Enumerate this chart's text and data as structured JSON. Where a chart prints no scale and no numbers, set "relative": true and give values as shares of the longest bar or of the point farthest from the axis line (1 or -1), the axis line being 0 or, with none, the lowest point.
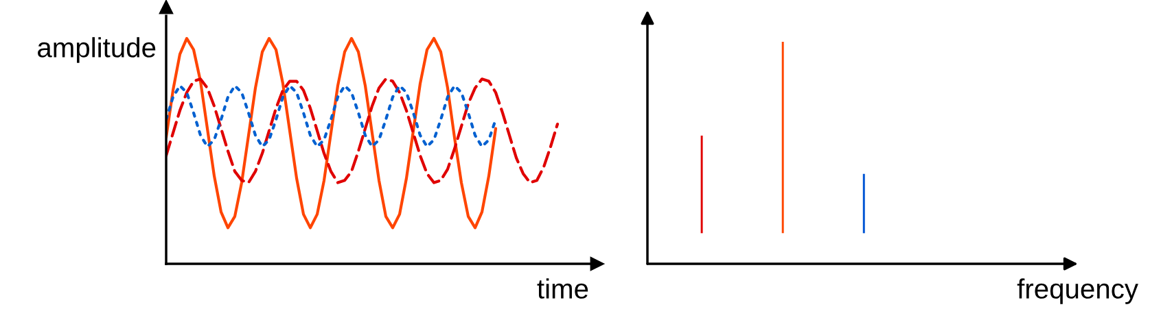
{
  "chart_data": [
    {
      "type": "line",
      "relative": true,
      "xlabel": "time",
      "ylabel": "amplitude",
      "categories": [
        null,
        null,
        null,
        null,
        null,
        null,
        null,
        null,
        null,
        null,
        null,
        null,
        null,
        null,
        null,
        null,
        null,
        null,
        null,
        null,
        null,
        null,
        null,
        null,
        null,
        null,
        null,
        null,
        null,
        null,
        null,
        null,
        null,
        null,
        null,
        null,
        null,
        null,
        null,
        null,
        null,
        null,
        null,
        null,
        null,
        null,
        null,
        null,
        null,
        null,
        null,
        null,
        null,
        null,
        null,
        null,
        null,
        null
      ],
      "series": [
        {
          "color": "#ff4500",
          "line_style": "solid",
          "values": [
            0.56,
            0.77,
            0.93,
            1.0,
            0.95,
            0.81,
            0.6,
            0.39,
            0.23,
            0.16,
            0.21,
            0.36,
            0.57,
            0.78,
            0.94,
            1.0,
            0.95,
            0.8,
            0.59,
            0.38,
            0.22,
            0.16,
            0.22,
            0.37,
            0.58,
            0.79,
            0.94,
            1.0,
            0.94,
            0.79,
            0.58,
            0.37,
            0.21,
            0.16,
            0.22,
            0.38,
            0.59,
            0.8,
            0.95,
            1.0,
            0.94,
            0.78,
            0.56,
            0.36,
            0.21,
            0.16,
            0.23,
            0.39,
            0.6,
            null,
            null,
            null,
            null,
            null,
            null,
            null,
            null,
            null
          ]
        },
        {
          "color": "#e00000",
          "line_style": "dashed",
          "values": [
            0.48,
            0.58,
            0.68,
            0.76,
            0.81,
            0.82,
            0.78,
            0.7,
            0.6,
            0.5,
            0.41,
            0.37,
            0.36,
            0.41,
            0.49,
            0.59,
            0.69,
            0.77,
            0.81,
            0.81,
            0.77,
            0.69,
            0.59,
            0.49,
            0.41,
            0.36,
            0.37,
            0.41,
            0.5,
            0.6,
            0.7,
            0.78,
            0.82,
            0.81,
            0.76,
            0.68,
            0.58,
            0.48,
            0.4,
            0.36,
            0.37,
            0.42,
            0.51,
            0.61,
            0.71,
            0.78,
            0.82,
            0.81,
            0.76,
            0.67,
            0.57,
            0.47,
            0.4,
            0.36,
            0.37,
            0.43,
            0.52,
            0.62
          ]
        },
        {
          "color": "#0060d0",
          "line_style": "dotted",
          "values": [
            0.64,
            0.74,
            0.79,
            0.76,
            0.67,
            0.57,
            0.52,
            0.55,
            0.64,
            0.74,
            0.79,
            0.76,
            0.67,
            0.57,
            0.52,
            0.55,
            0.64,
            0.74,
            0.79,
            0.76,
            0.67,
            0.57,
            0.52,
            0.55,
            0.64,
            0.74,
            0.79,
            0.76,
            0.67,
            0.57,
            0.52,
            0.55,
            0.64,
            0.74,
            0.79,
            0.76,
            0.67,
            0.57,
            0.52,
            0.55,
            0.64,
            0.74,
            0.79,
            0.76,
            0.67,
            0.57,
            0.52,
            0.55,
            0.64,
            null,
            null,
            null,
            null,
            null,
            null,
            null,
            null,
            null
          ]
        }
      ]
    },
    {
      "type": "bar",
      "relative": true,
      "xlabel": "frequency",
      "categories": [
        null,
        null,
        null
      ],
      "values": [
        0.51,
        1,
        0.31
      ],
      "colors": [
        "#e00000",
        "#ff4500",
        "#0055d4"
      ]
    }
  ]
}
